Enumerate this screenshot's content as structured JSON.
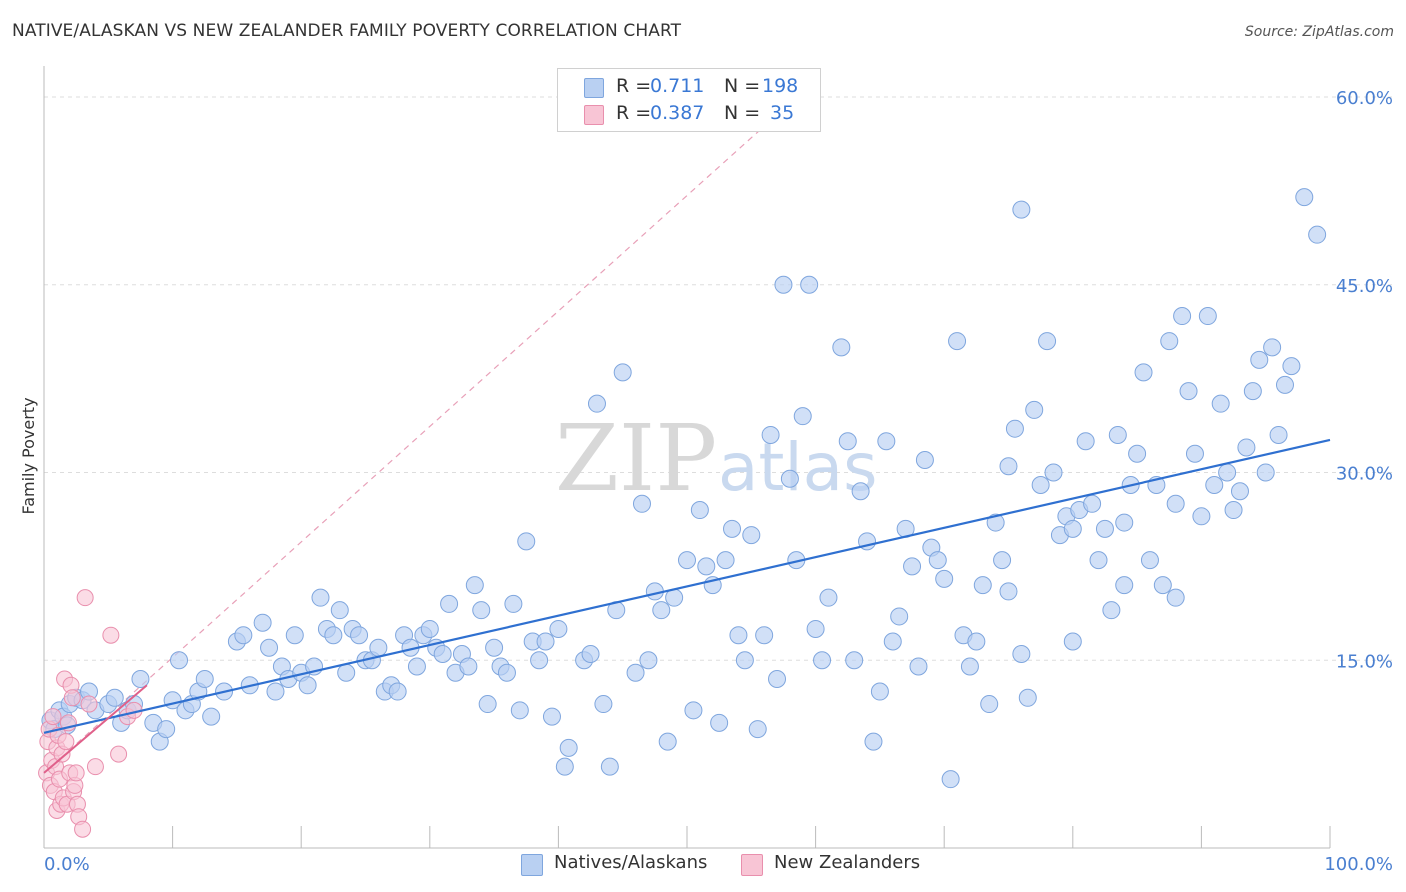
{
  "title": "NATIVE/ALASKAN VS NEW ZEALANDER FAMILY POVERTY CORRELATION CHART",
  "source": "Source: ZipAtlas.com",
  "colors": {
    "blue_fill": "#b9d0f2",
    "blue_stroke": "#7fa6de",
    "blue_line": "#2f70d0",
    "pink_fill": "#f8c5d5",
    "pink_stroke": "#e98fad",
    "pink_line": "#e0608a",
    "grid": "#dddddd",
    "axis_text": "#4a7fd0"
  },
  "legend": {
    "rows": [
      {
        "r_label": "R =",
        "r_value": "0.711",
        "n_label": "N =",
        "n_value": "198"
      },
      {
        "r_label": "R =",
        "r_value": "0.387",
        "n_label": "N =",
        "n_value": "35"
      }
    ]
  },
  "bottom_legend": {
    "series1": "Natives/Alaskans",
    "series2": "New Zealanders"
  },
  "watermark": {
    "zip": "ZIP",
    "atlas": "atlas"
  },
  "chart_data": {
    "type": "scatter",
    "title": "NATIVE/ALASKAN VS NEW ZEALANDER FAMILY POVERTY CORRELATION CHART",
    "xlabel": "",
    "ylabel": "Family Poverty",
    "xlim": [
      0,
      100
    ],
    "ylim": [
      0,
      63
    ],
    "x_tick_labels": [
      {
        "value": 0,
        "label": "0.0%"
      },
      {
        "value": 100,
        "label": "100.0%"
      }
    ],
    "y_tick_labels": [
      {
        "value": 15,
        "label": "15.0%"
      },
      {
        "value": 30,
        "label": "30.0%"
      },
      {
        "value": 45,
        "label": "45.0%"
      },
      {
        "value": 60,
        "label": "60.0%"
      }
    ],
    "series": [
      {
        "name": "Natives/Alaskans",
        "R": 0.711,
        "N": 198,
        "trendline": {
          "x": [
            0,
            100
          ],
          "y": [
            9.2,
            32.6
          ]
        },
        "points": [
          [
            0.5,
            10.2
          ],
          [
            0.8,
            9.5
          ],
          [
            1.2,
            11.0
          ],
          [
            1.5,
            10.5
          ],
          [
            1.8,
            9.8
          ],
          [
            2.0,
            11.5
          ],
          [
            2.5,
            12.0
          ],
          [
            3.0,
            11.8
          ],
          [
            3.5,
            12.5
          ],
          [
            4.0,
            11.0
          ],
          [
            5.0,
            11.5
          ],
          [
            5.5,
            12.0
          ],
          [
            6.0,
            10.0
          ],
          [
            6.5,
            11.0
          ],
          [
            7.0,
            11.5
          ],
          [
            7.5,
            13.5
          ],
          [
            8.5,
            10.0
          ],
          [
            9.0,
            8.5
          ],
          [
            9.5,
            9.5
          ],
          [
            10.0,
            11.8
          ],
          [
            10.5,
            15.0
          ],
          [
            11.0,
            11.0
          ],
          [
            11.5,
            11.5
          ],
          [
            12.0,
            12.5
          ],
          [
            12.5,
            13.5
          ],
          [
            13.0,
            10.5
          ],
          [
            14.0,
            12.5
          ],
          [
            15.0,
            16.5
          ],
          [
            15.5,
            17.0
          ],
          [
            16.0,
            13.0
          ],
          [
            17.0,
            18.0
          ],
          [
            17.5,
            16.0
          ],
          [
            18.0,
            12.5
          ],
          [
            18.5,
            14.5
          ],
          [
            19.0,
            13.5
          ],
          [
            19.5,
            17.0
          ],
          [
            20.0,
            14.0
          ],
          [
            20.5,
            13.0
          ],
          [
            21.0,
            14.5
          ],
          [
            21.5,
            20.0
          ],
          [
            22.0,
            17.5
          ],
          [
            22.5,
            17.0
          ],
          [
            23.0,
            19.0
          ],
          [
            23.5,
            14.0
          ],
          [
            24.0,
            17.5
          ],
          [
            24.5,
            17.0
          ],
          [
            25.0,
            15.0
          ],
          [
            25.5,
            15.0
          ],
          [
            26.0,
            16.0
          ],
          [
            26.5,
            12.5
          ],
          [
            27.0,
            13.0
          ],
          [
            27.5,
            12.5
          ],
          [
            28.0,
            17.0
          ],
          [
            28.5,
            16.0
          ],
          [
            29.0,
            14.5
          ],
          [
            29.5,
            17.0
          ],
          [
            30.0,
            17.5
          ],
          [
            30.5,
            16.0
          ],
          [
            31.0,
            15.5
          ],
          [
            31.5,
            19.5
          ],
          [
            32.0,
            14.0
          ],
          [
            32.5,
            15.5
          ],
          [
            33.0,
            14.5
          ],
          [
            33.5,
            21.0
          ],
          [
            34.0,
            19.0
          ],
          [
            34.5,
            11.5
          ],
          [
            35.0,
            16.0
          ],
          [
            35.5,
            14.5
          ],
          [
            36.0,
            14.0
          ],
          [
            36.5,
            19.5
          ],
          [
            37.0,
            11.0
          ],
          [
            37.5,
            24.5
          ],
          [
            38.0,
            16.5
          ],
          [
            38.5,
            15.0
          ],
          [
            39.0,
            16.5
          ],
          [
            39.5,
            10.5
          ],
          [
            40.0,
            17.5
          ],
          [
            40.5,
            6.5
          ],
          [
            40.8,
            8.0
          ],
          [
            42.0,
            15.0
          ],
          [
            42.5,
            15.5
          ],
          [
            43.0,
            35.5
          ],
          [
            43.5,
            11.5
          ],
          [
            44.0,
            6.5
          ],
          [
            44.5,
            19.0
          ],
          [
            45.0,
            38.0
          ],
          [
            46.0,
            14.0
          ],
          [
            46.5,
            27.5
          ],
          [
            47.0,
            15.0
          ],
          [
            47.5,
            20.5
          ],
          [
            48.0,
            19.0
          ],
          [
            48.5,
            8.5
          ],
          [
            49.0,
            20.0
          ],
          [
            50.0,
            23.0
          ],
          [
            50.5,
            11.0
          ],
          [
            51.0,
            27.0
          ],
          [
            51.5,
            22.5
          ],
          [
            52.0,
            21.0
          ],
          [
            52.5,
            10.0
          ],
          [
            53.0,
            23.0
          ],
          [
            53.5,
            25.5
          ],
          [
            54.0,
            17.0
          ],
          [
            54.5,
            15.0
          ],
          [
            55.0,
            25.0
          ],
          [
            55.5,
            9.5
          ],
          [
            56.0,
            17.0
          ],
          [
            56.5,
            33.0
          ],
          [
            57.0,
            13.5
          ],
          [
            57.5,
            45.0
          ],
          [
            58.0,
            29.5
          ],
          [
            58.5,
            23.0
          ],
          [
            59.0,
            34.5
          ],
          [
            59.5,
            45.0
          ],
          [
            60.0,
            17.5
          ],
          [
            60.5,
            15.0
          ],
          [
            61.0,
            20.0
          ],
          [
            62.0,
            40.0
          ],
          [
            62.5,
            32.5
          ],
          [
            63.0,
            15.0
          ],
          [
            63.5,
            28.5
          ],
          [
            64.0,
            24.5
          ],
          [
            64.5,
            8.5
          ],
          [
            65.0,
            12.5
          ],
          [
            65.5,
            32.5
          ],
          [
            66.0,
            16.5
          ],
          [
            66.5,
            18.5
          ],
          [
            67.0,
            25.5
          ],
          [
            67.5,
            22.5
          ],
          [
            68.0,
            14.5
          ],
          [
            68.5,
            31.0
          ],
          [
            69.0,
            24.0
          ],
          [
            69.5,
            23.0
          ],
          [
            70.0,
            21.5
          ],
          [
            70.5,
            5.5
          ],
          [
            71.0,
            40.5
          ],
          [
            71.5,
            17.0
          ],
          [
            72.0,
            14.5
          ],
          [
            72.5,
            16.5
          ],
          [
            73.0,
            21.0
          ],
          [
            73.5,
            11.5
          ],
          [
            74.0,
            26.0
          ],
          [
            74.5,
            23.0
          ],
          [
            75.0,
            30.5
          ],
          [
            75.5,
            33.5
          ],
          [
            76.0,
            15.5
          ],
          [
            77.0,
            35.0
          ],
          [
            77.5,
            29.0
          ],
          [
            78.0,
            40.5
          ],
          [
            78.5,
            30.0
          ],
          [
            79.0,
            25.0
          ],
          [
            79.5,
            26.5
          ],
          [
            80.0,
            25.5
          ],
          [
            80.5,
            27.0
          ],
          [
            81.0,
            32.5
          ],
          [
            81.5,
            27.5
          ],
          [
            82.0,
            23.0
          ],
          [
            82.5,
            25.5
          ],
          [
            83.0,
            19.0
          ],
          [
            83.5,
            33.0
          ],
          [
            84.0,
            26.0
          ],
          [
            84.5,
            29.0
          ],
          [
            85.0,
            31.5
          ],
          [
            85.5,
            38.0
          ],
          [
            86.0,
            23.0
          ],
          [
            86.5,
            29.0
          ],
          [
            87.0,
            21.0
          ],
          [
            87.5,
            40.5
          ],
          [
            88.0,
            27.5
          ],
          [
            88.5,
            42.5
          ],
          [
            89.0,
            36.5
          ],
          [
            89.5,
            31.5
          ],
          [
            90.0,
            26.5
          ],
          [
            90.5,
            42.5
          ],
          [
            91.0,
            29.0
          ],
          [
            91.5,
            35.5
          ],
          [
            92.0,
            30.0
          ],
          [
            92.5,
            27.0
          ],
          [
            93.0,
            28.5
          ],
          [
            93.5,
            32.0
          ],
          [
            94.0,
            36.5
          ],
          [
            94.5,
            39.0
          ],
          [
            95.0,
            30.0
          ],
          [
            95.5,
            40.0
          ],
          [
            96.0,
            33.0
          ],
          [
            96.5,
            37.0
          ],
          [
            97.0,
            38.5
          ],
          [
            98.0,
            52.0
          ],
          [
            99.0,
            49.0
          ],
          [
            76.0,
            51.0
          ],
          [
            75.0,
            20.5
          ],
          [
            76.5,
            12.0
          ],
          [
            80.0,
            16.5
          ],
          [
            84.0,
            21.0
          ],
          [
            88.0,
            20.0
          ]
        ]
      },
      {
        "name": "New Zealanders",
        "R": 0.387,
        "N": 35,
        "trendline": {
          "x": [
            0,
            8
          ],
          "y": [
            6.0,
            13.0
          ]
        },
        "points": [
          [
            0.2,
            6.0
          ],
          [
            0.3,
            8.5
          ],
          [
            0.4,
            9.5
          ],
          [
            0.5,
            5.0
          ],
          [
            0.6,
            7.0
          ],
          [
            0.7,
            10.5
          ],
          [
            0.8,
            4.5
          ],
          [
            0.9,
            6.5
          ],
          [
            1.0,
            3.0
          ],
          [
            1.0,
            8.0
          ],
          [
            1.1,
            9.0
          ],
          [
            1.2,
            5.5
          ],
          [
            1.3,
            3.5
          ],
          [
            1.4,
            7.5
          ],
          [
            1.5,
            4.0
          ],
          [
            1.6,
            13.5
          ],
          [
            1.7,
            8.5
          ],
          [
            1.8,
            3.5
          ],
          [
            1.9,
            10.0
          ],
          [
            2.0,
            6.0
          ],
          [
            2.1,
            13.0
          ],
          [
            2.2,
            12.0
          ],
          [
            2.3,
            4.5
          ],
          [
            2.4,
            5.0
          ],
          [
            2.5,
            6.0
          ],
          [
            2.6,
            3.5
          ],
          [
            2.7,
            2.5
          ],
          [
            3.0,
            1.5
          ],
          [
            3.2,
            20.0
          ],
          [
            3.5,
            11.5
          ],
          [
            4.0,
            6.5
          ],
          [
            5.2,
            17.0
          ],
          [
            5.8,
            7.5
          ],
          [
            6.5,
            10.5
          ],
          [
            7.0,
            11.0
          ]
        ]
      }
    ]
  }
}
